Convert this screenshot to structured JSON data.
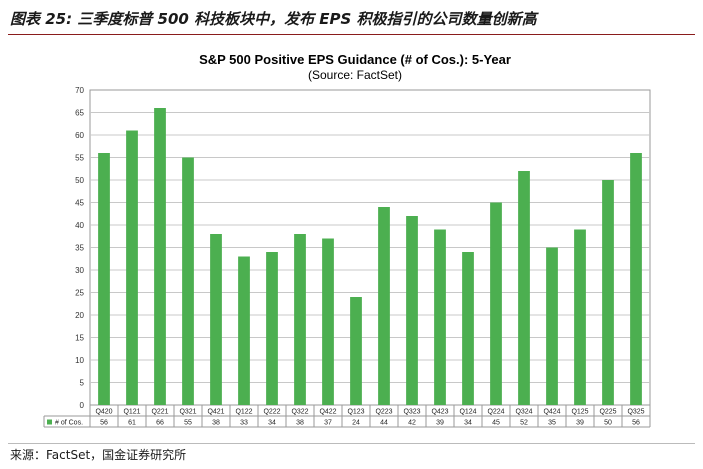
{
  "caption": "图表 25: 三季度标普 500 科技板块中，发布 EPS 积极指引的公司数量创新高",
  "source": "来源：FactSet，国金证券研究所",
  "chart_data": {
    "type": "bar",
    "title": "S&P 500 Positive EPS Guidance (# of Cos.): 5-Year",
    "subtitle": "(Source: FactSet)",
    "categories": [
      "Q420",
      "Q121",
      "Q221",
      "Q321",
      "Q421",
      "Q122",
      "Q222",
      "Q322",
      "Q422",
      "Q123",
      "Q223",
      "Q323",
      "Q423",
      "Q124",
      "Q224",
      "Q324",
      "Q424",
      "Q125",
      "Q225",
      "Q325"
    ],
    "series": [
      {
        "name": "# of Cos.",
        "values": [
          56,
          61,
          66,
          55,
          38,
          33,
          34,
          38,
          37,
          24,
          44,
          42,
          39,
          34,
          45,
          52,
          35,
          39,
          50,
          56
        ],
        "color": "#4caf50"
      }
    ],
    "ylim": [
      0,
      70
    ],
    "yticks": [
      0,
      5,
      10,
      15,
      20,
      25,
      30,
      35,
      40,
      45,
      50,
      55,
      60,
      65,
      70
    ],
    "grid": true,
    "legend": "data-table-left"
  }
}
